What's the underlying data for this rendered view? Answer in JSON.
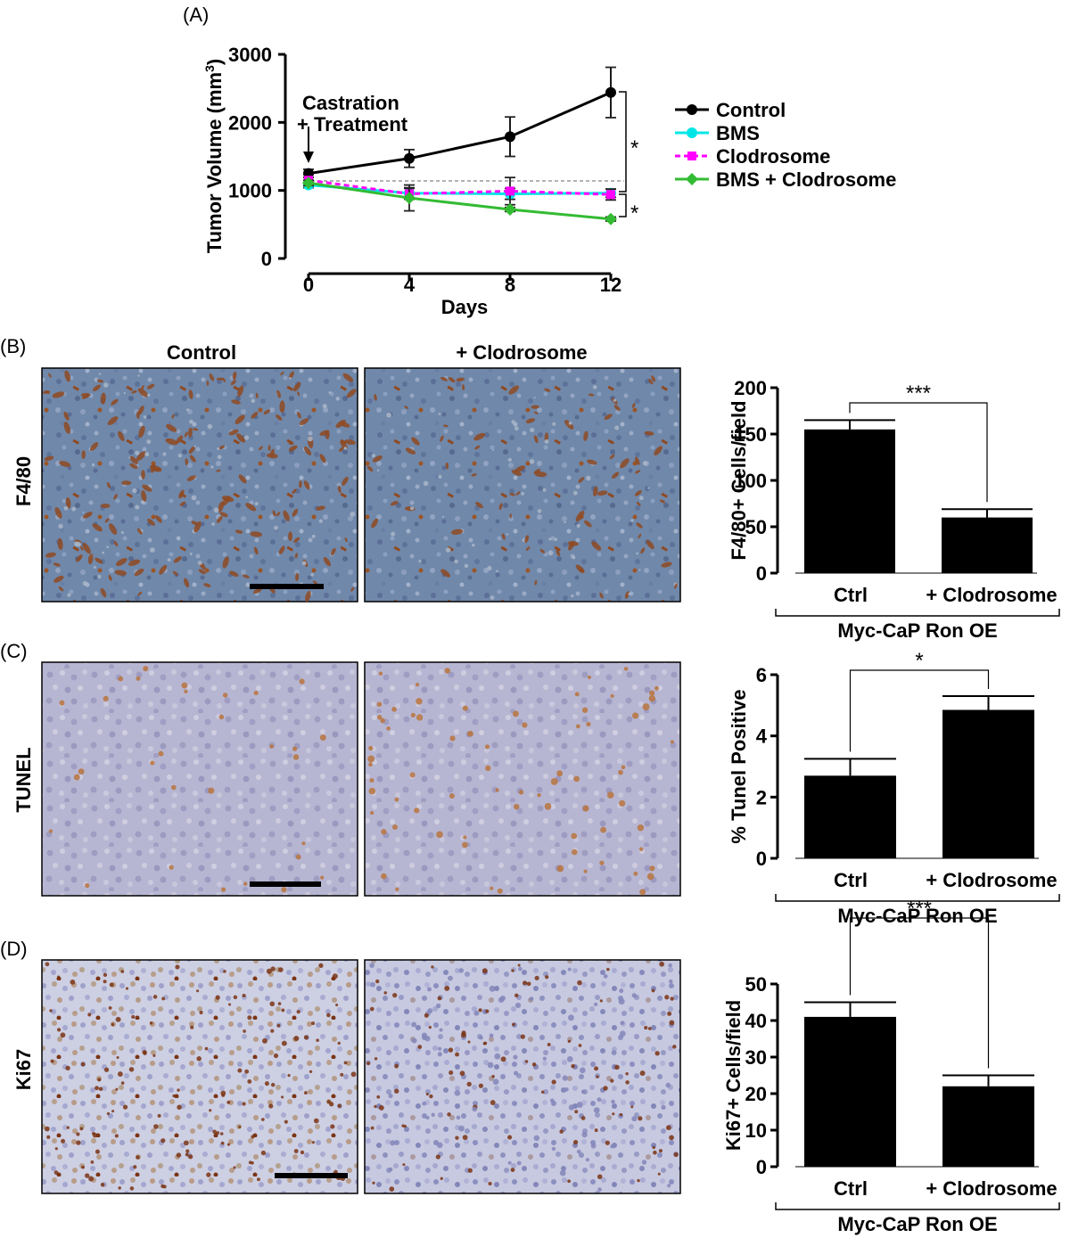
{
  "panel_labels": {
    "a": "(A)",
    "b": "(B)",
    "c": "(C)",
    "d": "(D)"
  },
  "chart_data": [
    {
      "type": "line",
      "panel": "(A)",
      "xlabel": "Days",
      "ylabel_main": "Tumor Volume (mm",
      "ylabel_sup": "3",
      "ylabel_close": ")",
      "x": [
        0,
        4,
        8,
        12
      ],
      "x_ticks": [
        "0",
        "4",
        "8",
        "12"
      ],
      "y_ticks": [
        "0",
        "1000",
        "2000",
        "3000"
      ],
      "ylim": [
        0,
        3000
      ],
      "xlim": [
        0,
        12
      ],
      "annotation_line1": "Castration",
      "annotation_line2": "+ Treatment",
      "reference_line": 1140,
      "significance": [
        "*",
        "*"
      ],
      "legend_position": "right",
      "series": [
        {
          "name": "Control",
          "values": [
            1250,
            1470,
            1790,
            2440
          ],
          "errors": [
            60,
            130,
            290,
            370
          ],
          "color": "#000000",
          "marker": "circle",
          "dash": false
        },
        {
          "name": "BMS",
          "values": [
            1080,
            960,
            950,
            960
          ],
          "errors": [
            40,
            80,
            80,
            60
          ],
          "color": "#00e6e6",
          "marker": "circle",
          "dash": false
        },
        {
          "name": "Clodrosome",
          "values": [
            1150,
            950,
            990,
            940
          ],
          "errors": [
            40,
            80,
            200,
            80
          ],
          "color": "#ff00ff",
          "marker": "square",
          "dash": true
        },
        {
          "name": "BMS + Clodrosome",
          "values": [
            1110,
            890,
            720,
            580
          ],
          "errors": [
            40,
            190,
            30,
            30
          ],
          "color": "#33bb33",
          "marker": "diamond",
          "dash": false
        }
      ]
    },
    {
      "type": "bar",
      "panel": "(B)",
      "ylabel": "F4/80+ Cells/field",
      "categories": [
        "Ctrl",
        "+ Clodrosome"
      ],
      "values": [
        155,
        60
      ],
      "errors": [
        10,
        9
      ],
      "y_ticks": [
        "0",
        "50",
        "100",
        "150",
        "200"
      ],
      "ylim": [
        0,
        200
      ],
      "group_label": "Myc-CaP Ron OE",
      "significance": "***"
    },
    {
      "type": "bar",
      "panel": "(C)",
      "ylabel": "% Tunel Positive",
      "categories": [
        "Ctrl",
        "+ Clodrosome"
      ],
      "values": [
        2.7,
        4.85
      ],
      "errors": [
        0.55,
        0.45
      ],
      "y_ticks": [
        "0",
        "2",
        "4",
        "6"
      ],
      "ylim": [
        0,
        6
      ],
      "group_label": "Myc-CaP Ron OE",
      "significance": "*"
    },
    {
      "type": "bar",
      "panel": "(D)",
      "ylabel": "Ki67+ Cells/field",
      "categories": [
        "Ctrl",
        "+ Clodrosome"
      ],
      "values": [
        41,
        22
      ],
      "errors": [
        4,
        3
      ],
      "y_ticks": [
        "0",
        "10",
        "20",
        "30",
        "40",
        "50"
      ],
      "ylim": [
        0,
        50
      ],
      "group_label": "Myc-CaP Ron OE",
      "significance": "***"
    }
  ],
  "micrographs": {
    "column_headers": [
      "Control",
      "+ Clodrosome"
    ],
    "row_labels": [
      "F4/80",
      "TUNEL",
      "Ki67"
    ],
    "colors": {
      "f480_base": "#6f86a8",
      "f480_stain": "#8e4a22",
      "f480_light": "#a9b6c8",
      "tunel_base": "#b5b4d0",
      "tunel_stain": "#b8743e",
      "tunel_light": "#d3d0de",
      "ki67_base": "#c9cbe0",
      "ki67_stain": "#7a3414",
      "ki67_blue": "#8286b8"
    }
  }
}
